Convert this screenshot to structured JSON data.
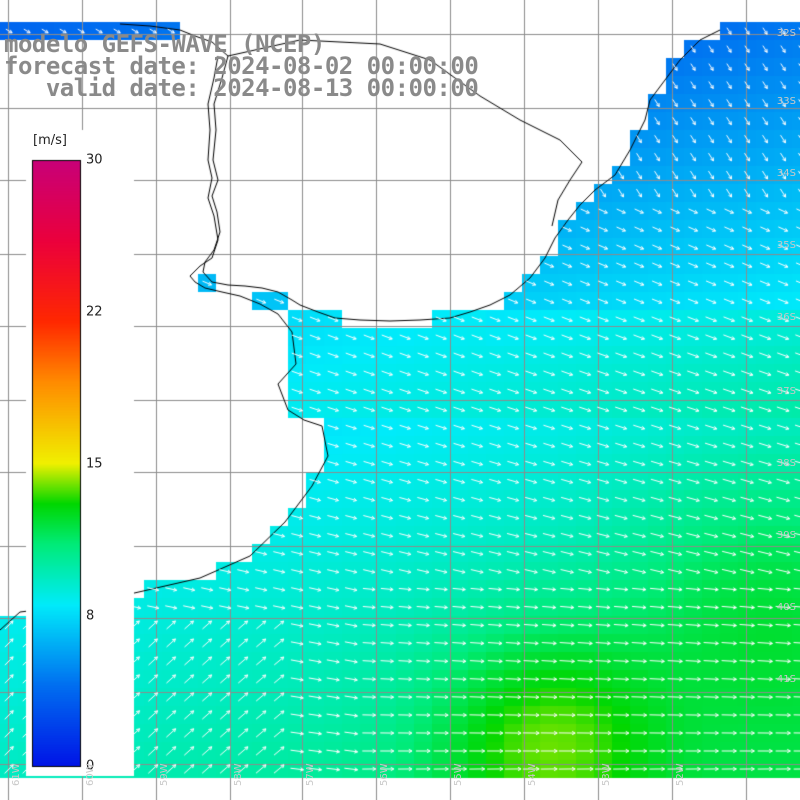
{
  "header": {
    "model_line": "modelo GEFS-WAVE (NCEP)",
    "forecast_line": "forecast date: 2024-08-02 00:00:00",
    "valid_line": "   valid date: 2024-08-13 00:00:00"
  },
  "colorbar": {
    "unit": "[m/s]",
    "min": 0,
    "max": 30,
    "ticks": [
      "30",
      "22",
      "15",
      "8",
      "0"
    ]
  },
  "axes": {
    "lat_labels": [
      "32S",
      "33S",
      "34S",
      "35S",
      "36S",
      "37S",
      "38S",
      "39S",
      "40S",
      "41S"
    ],
    "lon_labels": [
      "61W",
      "60W",
      "59W",
      "58W",
      "57W",
      "56W",
      "55W",
      "54W",
      "53W",
      "52W"
    ]
  },
  "colors": {
    "land": "#ffffff",
    "coastline": "#000000",
    "grid": "#808080",
    "vectors": "#ffffff",
    "title_text": "#8a8a8a"
  },
  "field": {
    "variable": "wind speed",
    "vector_icon": "wind-arrow"
  }
}
